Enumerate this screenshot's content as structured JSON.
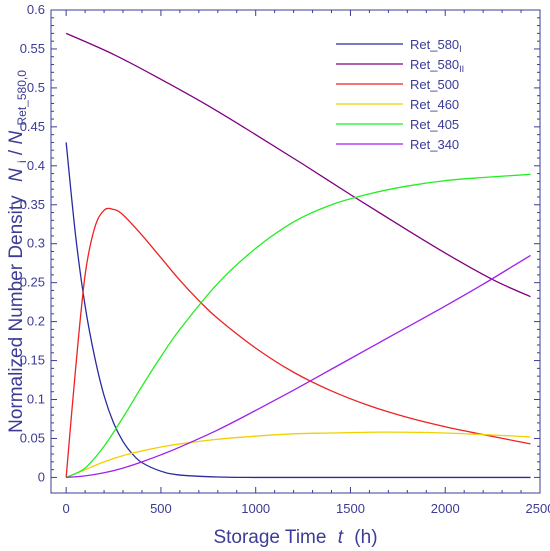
{
  "chart_data": {
    "type": "line",
    "title": "",
    "xlabel": "Storage Time",
    "xlabel_var": "t",
    "xlabel_unit": "(h)",
    "ylabel": "Normalized Number Density",
    "ylabel_var_main": "N",
    "ylabel_var_sub": "i",
    "ylabel_sep": "/",
    "ylabel_den_main": "N",
    "ylabel_den_sub": "Ret_580,0",
    "xlim": [
      -80,
      2500
    ],
    "ylim": [
      -0.02,
      0.6
    ],
    "xticks": [
      "0",
      "500",
      "1000",
      "1500",
      "2000",
      "2500"
    ],
    "yticks": [
      "0",
      "0.05",
      "0.1",
      "0.15",
      "0.2",
      "0.25",
      "0.3",
      "0.35",
      "0.4",
      "0.45",
      "0.5",
      "0.55",
      "0.6"
    ],
    "legend_position": "top-right",
    "grid": false,
    "series": [
      {
        "name_main": "Ret_580",
        "name_sub": "I",
        "color": "#2a2aa0",
        "x": [
          0,
          50,
          100,
          150,
          200,
          250,
          300,
          350,
          400,
          500,
          600,
          800,
          1000,
          1500,
          2000,
          2450
        ],
        "y": [
          0.43,
          0.31,
          0.22,
          0.155,
          0.105,
          0.07,
          0.046,
          0.03,
          0.019,
          0.008,
          0.003,
          0.0005,
          0,
          0,
          0,
          0
        ]
      },
      {
        "name_main": "Ret_580",
        "name_sub": "II",
        "color": "#800080",
        "x": [
          0,
          250,
          500,
          750,
          1000,
          1250,
          1500,
          1750,
          2000,
          2250,
          2450
        ],
        "y": [
          0.57,
          0.543,
          0.511,
          0.477,
          0.44,
          0.402,
          0.363,
          0.325,
          0.288,
          0.254,
          0.232
        ]
      },
      {
        "name_main": "Ret_500",
        "name_sub": "",
        "color": "#ee2222",
        "x": [
          0,
          50,
          100,
          150,
          200,
          250,
          300,
          400,
          500,
          600,
          700,
          800,
          1000,
          1200,
          1400,
          1600,
          1800,
          2000,
          2200,
          2450
        ],
        "y": [
          0,
          0.14,
          0.26,
          0.32,
          0.343,
          0.344,
          0.337,
          0.311,
          0.282,
          0.253,
          0.227,
          0.204,
          0.166,
          0.135,
          0.111,
          0.092,
          0.077,
          0.065,
          0.055,
          0.043
        ]
      },
      {
        "name_main": "Ret_460",
        "name_sub": "",
        "color": "#f0d000",
        "x": [
          0,
          100,
          200,
          300,
          400,
          500,
          600,
          800,
          1000,
          1200,
          1400,
          1600,
          1800,
          2000,
          2200,
          2450
        ],
        "y": [
          0,
          0.01,
          0.02,
          0.028,
          0.034,
          0.039,
          0.043,
          0.049,
          0.053,
          0.056,
          0.057,
          0.058,
          0.058,
          0.057,
          0.055,
          0.052
        ]
      },
      {
        "name_main": "Ret_405",
        "name_sub": "",
        "color": "#22ee22",
        "x": [
          0,
          100,
          200,
          300,
          400,
          500,
          600,
          800,
          1000,
          1200,
          1400,
          1600,
          1800,
          2000,
          2200,
          2450
        ],
        "y": [
          0,
          0.012,
          0.04,
          0.077,
          0.117,
          0.155,
          0.19,
          0.249,
          0.294,
          0.328,
          0.35,
          0.364,
          0.374,
          0.381,
          0.385,
          0.389
        ]
      },
      {
        "name_main": "Ret_340",
        "name_sub": "",
        "color": "#a020ee",
        "x": [
          0,
          100,
          200,
          300,
          400,
          500,
          600,
          800,
          1000,
          1200,
          1400,
          1600,
          1800,
          2000,
          2200,
          2450
        ],
        "y": [
          0,
          0.002,
          0.006,
          0.012,
          0.02,
          0.029,
          0.039,
          0.061,
          0.086,
          0.112,
          0.139,
          0.166,
          0.193,
          0.22,
          0.248,
          0.285
        ]
      }
    ]
  }
}
